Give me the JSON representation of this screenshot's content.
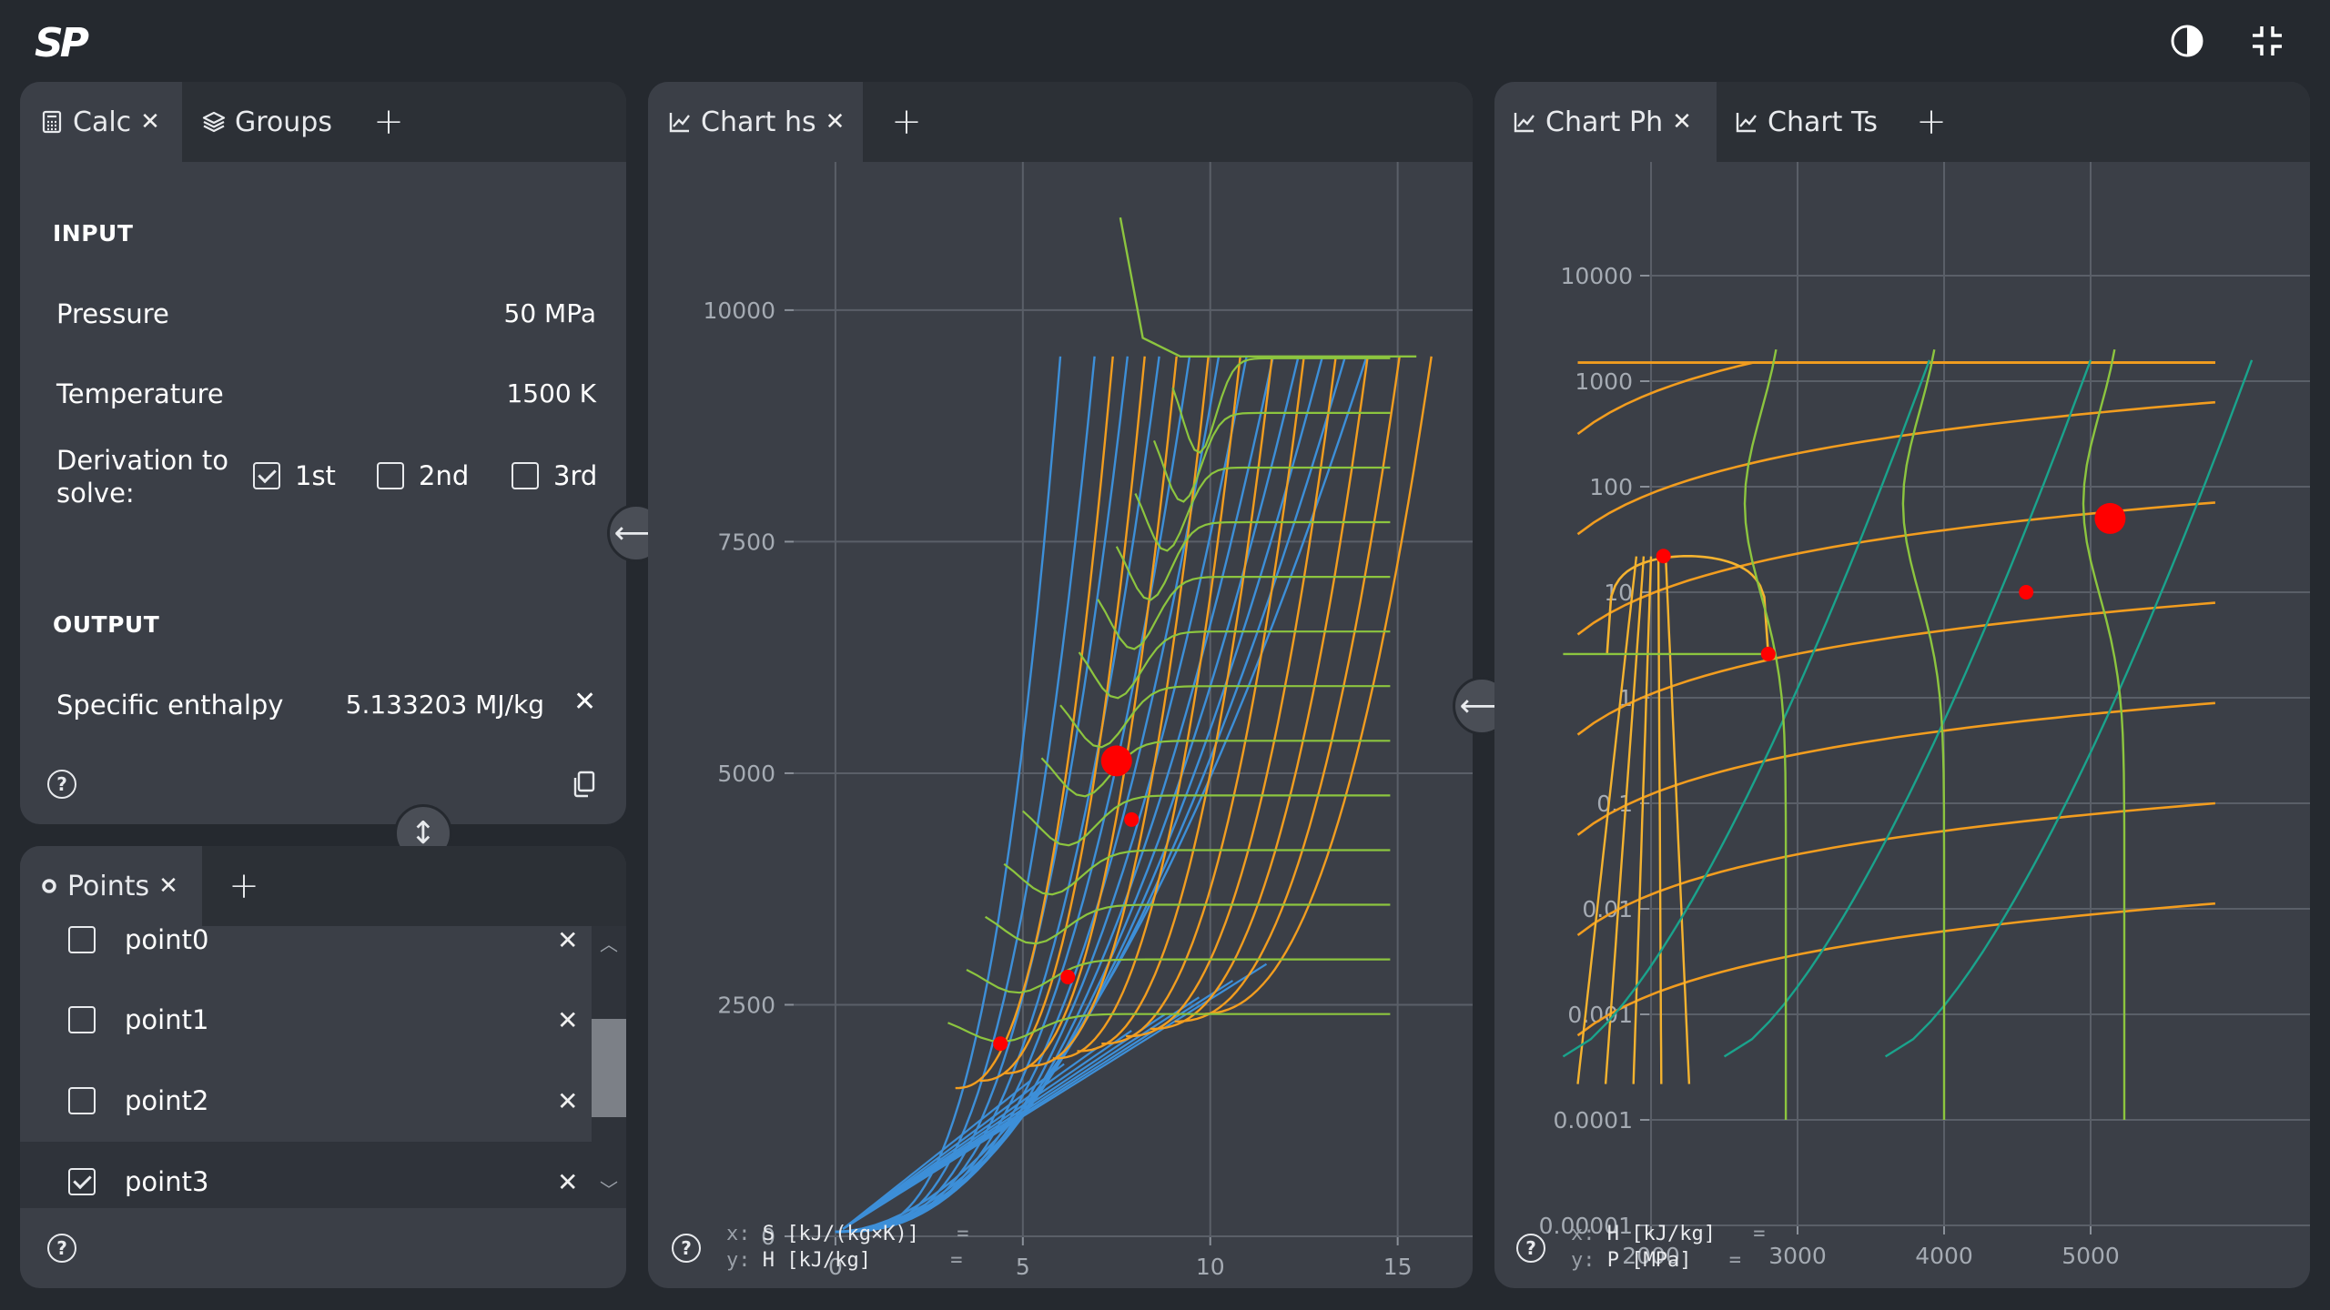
{
  "app": {
    "logo": "SP"
  },
  "toolbar": {
    "theme_icon": "contrast-icon",
    "collapse_icon": "fullscreen-exit-icon"
  },
  "calc_panel": {
    "tabs": [
      {
        "label": "Calc",
        "icon": "calculator-icon",
        "active": true
      },
      {
        "label": "Groups",
        "icon": "layers-icon",
        "active": false
      }
    ],
    "input_heading": "INPUT",
    "pressure_label": "Pressure",
    "pressure_value": "50 MPa",
    "temperature_label": "Temperature",
    "temperature_value": "1500 K",
    "derivation_label_1": "Derivation to",
    "derivation_label_2": "solve:",
    "derivation_options": [
      {
        "label": "1st",
        "checked": true
      },
      {
        "label": "2nd",
        "checked": false
      },
      {
        "label": "3rd",
        "checked": false
      }
    ],
    "output_heading": "OUTPUT",
    "enthalpy_label": "Specific enthalpy",
    "enthalpy_value": "5.133203 MJ/kg"
  },
  "points_panel": {
    "tab_label": "Points",
    "items": [
      {
        "name": "point0",
        "checked": false
      },
      {
        "name": "point1",
        "checked": false
      },
      {
        "name": "point2",
        "checked": false
      },
      {
        "name": "point3",
        "checked": true
      }
    ]
  },
  "hs_panel": {
    "tab_label": "Chart hs",
    "readout": {
      "x_prefix": "x:",
      "x_label": "S [kJ/(kg×K)]",
      "y_prefix": "y:",
      "y_label": "H [kJ/kg]",
      "eq": "="
    }
  },
  "ph_panel": {
    "tabs": [
      {
        "label": "Chart Ph",
        "active": true
      },
      {
        "label": "Chart Ts",
        "active": false
      }
    ],
    "readout": {
      "x_prefix": "x:",
      "x_label": "H [kJ/kg]",
      "y_prefix": "y:",
      "y_label": "P [MPa]",
      "eq": "="
    }
  },
  "chart_data": [
    {
      "type": "line",
      "name": "Chart hs",
      "xlabel": "S [kJ/(kg×K)]",
      "ylabel": "H [kJ/kg]",
      "xlim": [
        -5,
        17
      ],
      "ylim": [
        0,
        11600
      ],
      "xticks": [
        "0",
        "5",
        "10",
        "15"
      ],
      "yticks": [
        "0",
        "2500",
        "5000",
        "7500",
        "10000"
      ],
      "grid": true,
      "line_colors": {
        "isobars": "#3d8fd8",
        "isotherms": "#f29d1f",
        "other": "#8cc53f"
      },
      "points": [
        {
          "x": 7.5,
          "y": 5133,
          "size": "large"
        },
        {
          "x": 7.9,
          "y": 4500,
          "size": "small"
        },
        {
          "x": 6.2,
          "y": 2800,
          "size": "small"
        },
        {
          "x": 4.4,
          "y": 2080,
          "size": "small"
        }
      ]
    },
    {
      "type": "line",
      "name": "Chart Ph",
      "xlabel": "H [kJ/kg]",
      "ylabel": "P [MPa]",
      "xscale": "linear",
      "yscale": "log",
      "xlim": [
        1400,
        5850
      ],
      "ylim": [
        1e-05,
        10000
      ],
      "xticks": [
        "2000",
        "3000",
        "4000",
        "5000"
      ],
      "yticks": [
        "0.00001",
        "0.0001",
        "0.001",
        "0.01",
        "0.1",
        "1",
        "10",
        "100",
        "1000",
        "10000"
      ],
      "grid": true,
      "line_colors": {
        "isotherms": "#f29d1f",
        "saturation": "#f5b32f",
        "entropy": "#1aa38c",
        "other": "#8cc53f"
      },
      "points": [
        {
          "x": 5133,
          "y": 50,
          "size": "large"
        },
        {
          "x": 4560,
          "y": 10,
          "size": "small"
        },
        {
          "x": 2085,
          "y": 22,
          "size": "small"
        },
        {
          "x": 2800,
          "y": 2.6,
          "size": "small"
        }
      ]
    }
  ]
}
